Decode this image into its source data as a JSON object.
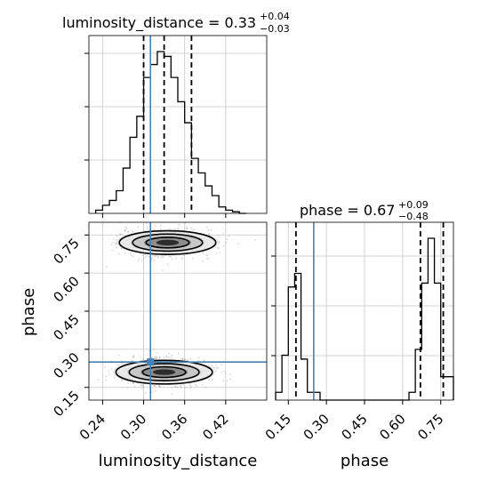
{
  "chart_data": {
    "type": "corner",
    "parameters": [
      "luminosity_distance",
      "phase"
    ],
    "titles": {
      "luminosity_distance": {
        "name": "luminosity_distance",
        "median": "0.33",
        "plus": "+0.04",
        "minus": "−0.03"
      },
      "phase": {
        "name": "phase",
        "median": "0.67",
        "plus": "+0.09",
        "minus": "−0.48"
      }
    },
    "truth": {
      "luminosity_distance": 0.31,
      "phase": 0.25
    },
    "truth_color": "#4682b4",
    "quantiles": {
      "luminosity_distance": [
        0.3,
        0.33,
        0.37
      ],
      "phase": [
        0.18,
        0.67,
        0.76
      ]
    },
    "xlim": {
      "luminosity_distance": [
        0.22,
        0.48
      ],
      "phase": [
        0.1,
        0.8
      ]
    },
    "ticks": {
      "luminosity_distance": [
        0.24,
        0.3,
        0.36,
        0.42
      ],
      "phase": [
        0.15,
        0.3,
        0.45,
        0.6,
        0.75
      ]
    },
    "tick_labels": {
      "luminosity_distance": [
        "0.24",
        "0.30",
        "0.36",
        "0.42"
      ],
      "phase": [
        "0.15",
        "0.30",
        "0.45",
        "0.60",
        "0.75"
      ]
    },
    "xlabel_bottom_left": "luminosity_distance",
    "xlabel_bottom_right": "phase",
    "ylabel_left": "phase",
    "hist_luminosity_distance": {
      "bin_edges": [
        0.23,
        0.24,
        0.25,
        0.26,
        0.27,
        0.28,
        0.29,
        0.3,
        0.31,
        0.32,
        0.33,
        0.34,
        0.35,
        0.36,
        0.37,
        0.38,
        0.39,
        0.4,
        0.41,
        0.42,
        0.43,
        0.44,
        0.45
      ],
      "counts": [
        0.02,
        0.05,
        0.08,
        0.14,
        0.28,
        0.47,
        0.6,
        0.84,
        0.92,
        1.0,
        0.97,
        0.84,
        0.69,
        0.56,
        0.34,
        0.25,
        0.17,
        0.11,
        0.04,
        0.02,
        0.01,
        0.0
      ]
    },
    "hist_phase": {
      "bin_edges": [
        0.1,
        0.125,
        0.15,
        0.175,
        0.2,
        0.225,
        0.25,
        0.275,
        0.3,
        0.325,
        0.35,
        0.375,
        0.4,
        0.425,
        0.45,
        0.475,
        0.5,
        0.525,
        0.55,
        0.575,
        0.6,
        0.625,
        0.65,
        0.675,
        0.7,
        0.725,
        0.75,
        0.775,
        0.8
      ],
      "counts": [
        0.04,
        0.23,
        0.58,
        0.65,
        0.21,
        0.04,
        0.04,
        0.0,
        0.0,
        0.0,
        0.0,
        0.0,
        0.0,
        0.0,
        0.0,
        0.0,
        0.0,
        0.0,
        0.0,
        0.0,
        0.0,
        0.04,
        0.26,
        0.6,
        0.83,
        0.6,
        0.12,
        0.12
      ]
    },
    "modes_2d": [
      {
        "x": 0.335,
        "y": 0.72,
        "sx": 0.03,
        "sy": 0.03
      },
      {
        "x": 0.33,
        "y": 0.21,
        "sx": 0.03,
        "sy": 0.03
      }
    ],
    "grid": true
  }
}
